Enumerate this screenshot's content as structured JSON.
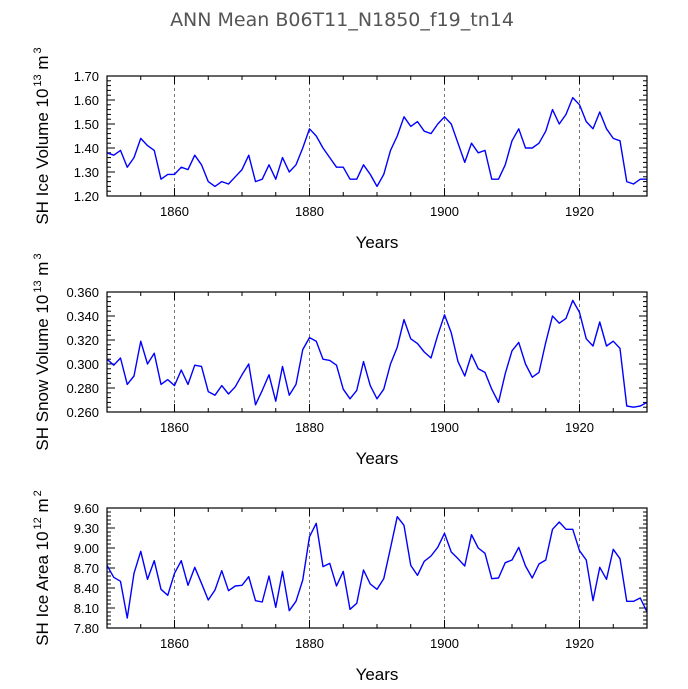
{
  "title": "ANN Mean  B06T11_N1850_f19_tn14",
  "colors": {
    "line": "#0000ff",
    "frame": "#000000",
    "grid": "#555555"
  },
  "chart_data": [
    {
      "type": "line",
      "xlabel": "Years",
      "ylabel": {
        "text": "SH Ice Volume 10",
        "exp": "13",
        "unit": " m",
        "unit_exp": "3"
      },
      "xlim": [
        1850,
        1930
      ],
      "ylim": [
        1.2,
        1.7
      ],
      "xticks": [
        1860,
        1880,
        1900,
        1920
      ],
      "yticks": [
        1.2,
        1.3,
        1.4,
        1.5,
        1.6,
        1.7
      ],
      "ytick_labels": [
        "1.20",
        "1.30",
        "1.40",
        "1.50",
        "1.60",
        "1.70"
      ],
      "grid": "vertical dashed at x ticks",
      "series": [
        {
          "x": [
            1850,
            1851,
            1852,
            1853,
            1854,
            1855,
            1856,
            1857,
            1858,
            1859,
            1860,
            1861,
            1862,
            1863,
            1864,
            1865,
            1866,
            1867,
            1868,
            1869,
            1870,
            1871,
            1872,
            1873,
            1874,
            1875,
            1876,
            1877,
            1878,
            1879,
            1880,
            1881,
            1882,
            1883,
            1884,
            1885,
            1886,
            1887,
            1888,
            1889,
            1890,
            1891,
            1892,
            1893,
            1894,
            1895,
            1896,
            1897,
            1898,
            1899,
            1900,
            1901,
            1902,
            1903,
            1904,
            1905,
            1906,
            1907,
            1908,
            1909,
            1910,
            1911,
            1912,
            1913,
            1914,
            1915,
            1916,
            1917,
            1918,
            1919,
            1920,
            1921,
            1922,
            1923,
            1924,
            1925,
            1926,
            1927,
            1928,
            1929,
            1930
          ],
          "values": [
            1.38,
            1.37,
            1.39,
            1.32,
            1.36,
            1.44,
            1.41,
            1.39,
            1.27,
            1.29,
            1.29,
            1.32,
            1.31,
            1.37,
            1.33,
            1.26,
            1.24,
            1.26,
            1.25,
            1.28,
            1.31,
            1.37,
            1.26,
            1.27,
            1.33,
            1.27,
            1.36,
            1.3,
            1.33,
            1.4,
            1.48,
            1.45,
            1.4,
            1.36,
            1.32,
            1.32,
            1.27,
            1.27,
            1.33,
            1.29,
            1.24,
            1.29,
            1.39,
            1.45,
            1.53,
            1.49,
            1.51,
            1.47,
            1.46,
            1.5,
            1.53,
            1.5,
            1.42,
            1.34,
            1.42,
            1.38,
            1.39,
            1.27,
            1.27,
            1.33,
            1.43,
            1.48,
            1.4,
            1.4,
            1.42,
            1.47,
            1.56,
            1.5,
            1.54,
            1.61,
            1.58,
            1.51,
            1.48,
            1.55,
            1.48,
            1.44,
            1.43,
            1.26,
            1.25,
            1.27,
            1.27
          ]
        }
      ]
    },
    {
      "type": "line",
      "xlabel": "Years",
      "ylabel": {
        "text": "SH Snow Volume 10",
        "exp": "13",
        "unit": " m",
        "unit_exp": "3"
      },
      "xlim": [
        1850,
        1930
      ],
      "ylim": [
        0.26,
        0.36
      ],
      "xticks": [
        1860,
        1880,
        1900,
        1920
      ],
      "yticks": [
        0.26,
        0.28,
        0.3,
        0.32,
        0.34,
        0.36
      ],
      "ytick_labels": [
        "0.260",
        "0.280",
        "0.300",
        "0.320",
        "0.340",
        "0.360"
      ],
      "grid": "vertical dashed at x ticks",
      "series": [
        {
          "x": [
            1850,
            1851,
            1852,
            1853,
            1854,
            1855,
            1856,
            1857,
            1858,
            1859,
            1860,
            1861,
            1862,
            1863,
            1864,
            1865,
            1866,
            1867,
            1868,
            1869,
            1870,
            1871,
            1872,
            1873,
            1874,
            1875,
            1876,
            1877,
            1878,
            1879,
            1880,
            1881,
            1882,
            1883,
            1884,
            1885,
            1886,
            1887,
            1888,
            1889,
            1890,
            1891,
            1892,
            1893,
            1894,
            1895,
            1896,
            1897,
            1898,
            1899,
            1900,
            1901,
            1902,
            1903,
            1904,
            1905,
            1906,
            1907,
            1908,
            1909,
            1910,
            1911,
            1912,
            1913,
            1914,
            1915,
            1916,
            1917,
            1918,
            1919,
            1920,
            1921,
            1922,
            1923,
            1924,
            1925,
            1926,
            1927,
            1928,
            1929,
            1930
          ],
          "values": [
            0.304,
            0.299,
            0.305,
            0.283,
            0.29,
            0.319,
            0.3,
            0.309,
            0.283,
            0.287,
            0.282,
            0.295,
            0.283,
            0.299,
            0.298,
            0.277,
            0.274,
            0.282,
            0.275,
            0.281,
            0.291,
            0.3,
            0.266,
            0.278,
            0.291,
            0.269,
            0.298,
            0.274,
            0.283,
            0.312,
            0.322,
            0.319,
            0.304,
            0.303,
            0.299,
            0.279,
            0.271,
            0.278,
            0.302,
            0.282,
            0.271,
            0.279,
            0.3,
            0.314,
            0.337,
            0.321,
            0.317,
            0.31,
            0.305,
            0.324,
            0.341,
            0.326,
            0.302,
            0.29,
            0.308,
            0.296,
            0.293,
            0.279,
            0.268,
            0.292,
            0.311,
            0.318,
            0.3,
            0.289,
            0.293,
            0.318,
            0.34,
            0.334,
            0.338,
            0.353,
            0.343,
            0.321,
            0.315,
            0.335,
            0.315,
            0.319,
            0.313,
            0.265,
            0.264,
            0.265,
            0.268
          ]
        }
      ]
    },
    {
      "type": "line",
      "xlabel": "Years",
      "ylabel": {
        "text": "SH Ice Area 10",
        "exp": "12",
        "unit": " m",
        "unit_exp": "2"
      },
      "xlim": [
        1850,
        1930
      ],
      "ylim": [
        7.8,
        9.6
      ],
      "xticks": [
        1860,
        1880,
        1900,
        1920
      ],
      "yticks": [
        7.8,
        8.1,
        8.4,
        8.7,
        9.0,
        9.3,
        9.6
      ],
      "ytick_labels": [
        "7.80",
        "8.10",
        "8.40",
        "8.70",
        "9.00",
        "9.30",
        "9.60"
      ],
      "grid": "vertical dashed at x ticks",
      "series": [
        {
          "x": [
            1850,
            1851,
            1852,
            1853,
            1854,
            1855,
            1856,
            1857,
            1858,
            1859,
            1860,
            1861,
            1862,
            1863,
            1864,
            1865,
            1866,
            1867,
            1868,
            1869,
            1870,
            1871,
            1872,
            1873,
            1874,
            1875,
            1876,
            1877,
            1878,
            1879,
            1880,
            1881,
            1882,
            1883,
            1884,
            1885,
            1886,
            1887,
            1888,
            1889,
            1890,
            1891,
            1892,
            1893,
            1894,
            1895,
            1896,
            1897,
            1898,
            1899,
            1900,
            1901,
            1902,
            1903,
            1904,
            1905,
            1906,
            1907,
            1908,
            1909,
            1910,
            1911,
            1912,
            1913,
            1914,
            1915,
            1916,
            1917,
            1918,
            1919,
            1920,
            1921,
            1922,
            1923,
            1924,
            1925,
            1926,
            1927,
            1928,
            1929,
            1930
          ],
          "values": [
            8.74,
            8.56,
            8.5,
            7.95,
            8.62,
            8.95,
            8.53,
            8.81,
            8.38,
            8.29,
            8.62,
            8.81,
            8.44,
            8.71,
            8.47,
            8.22,
            8.37,
            8.66,
            8.36,
            8.43,
            8.44,
            8.57,
            8.21,
            8.19,
            8.58,
            8.11,
            8.65,
            8.06,
            8.2,
            8.52,
            9.17,
            9.37,
            8.72,
            8.77,
            8.43,
            8.65,
            8.08,
            8.17,
            8.67,
            8.46,
            8.38,
            8.54,
            9.0,
            9.47,
            9.34,
            8.74,
            8.59,
            8.8,
            8.88,
            9.01,
            9.22,
            8.94,
            8.84,
            8.73,
            9.2,
            9.0,
            8.92,
            8.54,
            8.55,
            8.78,
            8.82,
            9.01,
            8.73,
            8.55,
            8.76,
            8.82,
            9.28,
            9.39,
            9.28,
            9.28,
            8.96,
            8.82,
            8.21,
            8.71,
            8.53,
            8.98,
            8.84,
            8.2,
            8.2,
            8.25,
            8.04
          ]
        }
      ]
    }
  ]
}
